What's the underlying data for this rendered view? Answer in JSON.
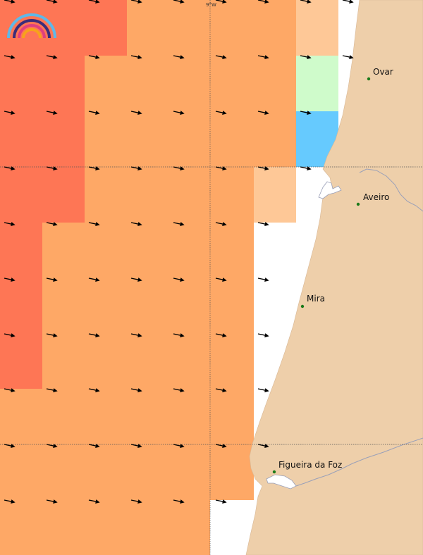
{
  "map": {
    "graticule": {
      "meridian_label": "9°W"
    },
    "colors": {
      "sea_white": "#ffffff",
      "land": "#eecfaa",
      "coast_line": "#9aa0b8",
      "red": "#fe7655",
      "orange": "#fea866",
      "light_orange": "#fec897",
      "light_green": "#cffbcb",
      "blue": "#66cafe",
      "arrow": "#000000",
      "city_dot": "#1a7a1a"
    },
    "cities": [
      {
        "name": "Ovar"
      },
      {
        "name": "Aveiro"
      },
      {
        "name": "Mira"
      },
      {
        "name": "Figueira da Foz"
      }
    ],
    "legend_icon": "rainbow-logo-icon",
    "arrow_icon": "wind-arrow-icon",
    "wind_direction": "east-south-east"
  }
}
